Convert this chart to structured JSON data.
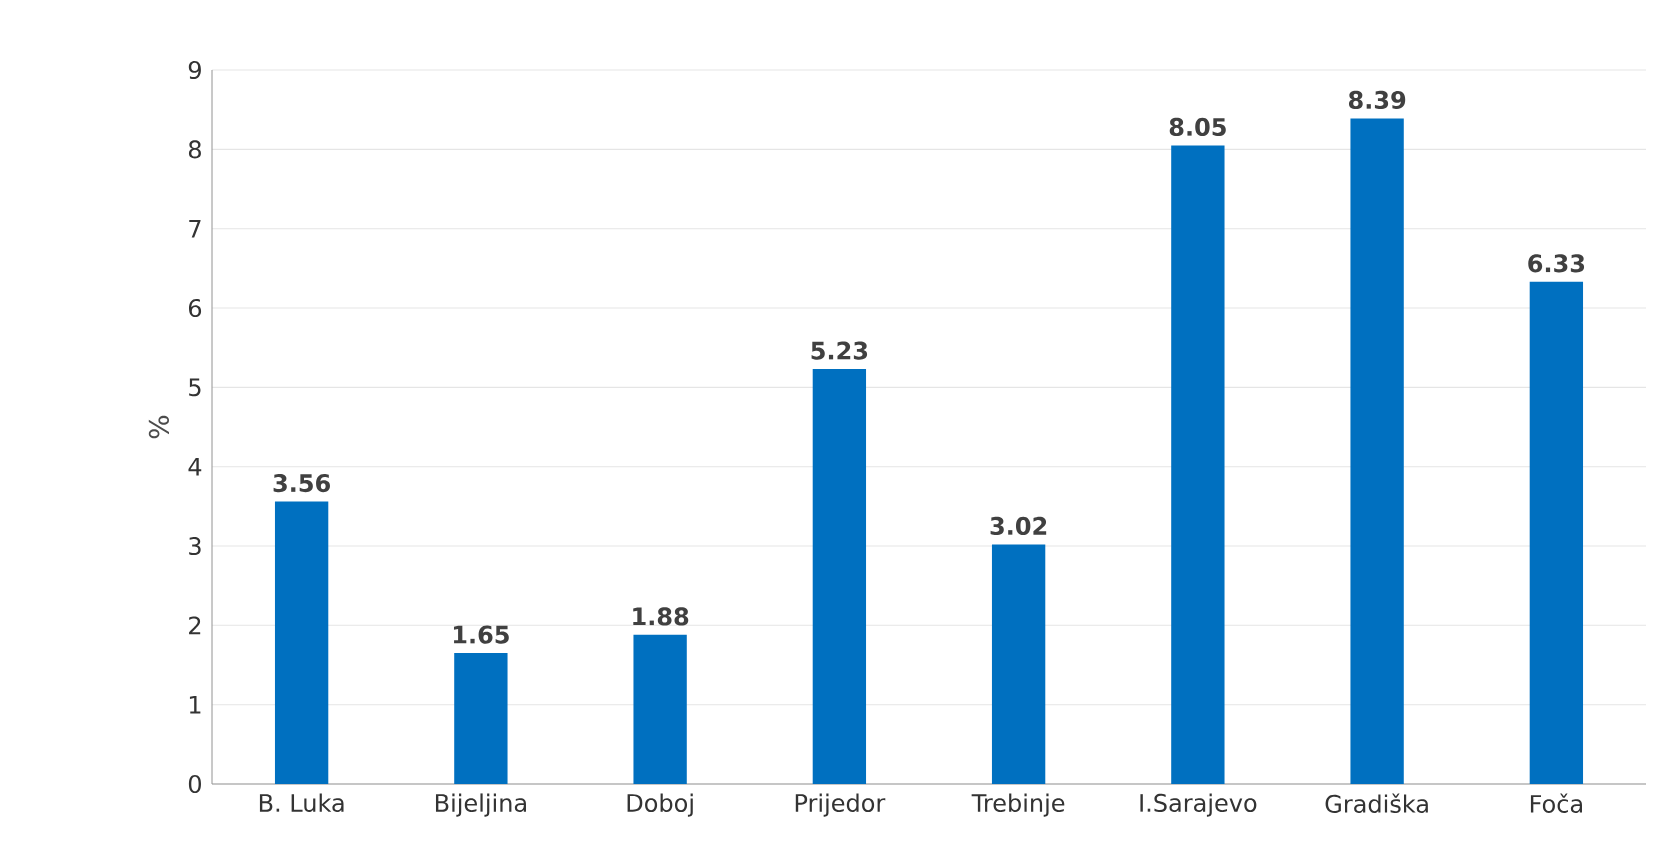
{
  "chart_data": {
    "type": "bar",
    "ylabel": "%",
    "categories": [
      "B. Luka",
      "Bijeljina",
      "Doboj",
      "Prijedor",
      "Trebinje",
      "I.Sarajevo",
      "Gradiška",
      "Foča"
    ],
    "values": [
      3.56,
      1.65,
      1.88,
      5.23,
      3.02,
      8.05,
      8.39,
      6.33
    ],
    "color": "#0070c0",
    "ylim": [
      0,
      9
    ],
    "yticks": [
      0,
      1,
      2,
      3,
      4,
      5,
      6,
      7,
      8,
      9
    ],
    "grid": "y",
    "data_labels": true
  }
}
